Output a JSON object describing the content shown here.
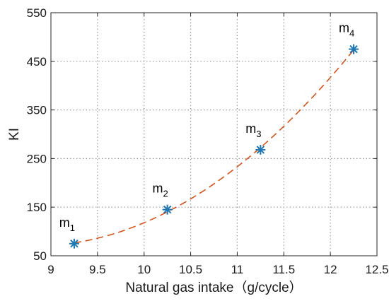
{
  "chart_data": {
    "type": "scatter",
    "xlabel": "Natural gas intake（g/cycle）",
    "ylabel": "KI",
    "xlim": [
      9,
      12.5
    ],
    "ylim": [
      50,
      550
    ],
    "xticks": [
      "9",
      "9.5",
      "10",
      "10.5",
      "11",
      "11.5",
      "12",
      "12.5"
    ],
    "yticks": [
      "50",
      "150",
      "250",
      "350",
      "450",
      "550"
    ],
    "grid": true,
    "points": [
      {
        "x": 9.25,
        "y": 75,
        "label_base": "m",
        "label_sub": "1"
      },
      {
        "x": 10.25,
        "y": 145,
        "label_base": "m",
        "label_sub": "2"
      },
      {
        "x": 11.25,
        "y": 268,
        "label_base": "m",
        "label_sub": "3"
      },
      {
        "x": 12.25,
        "y": 475,
        "label_base": "m",
        "label_sub": "4"
      }
    ],
    "marker_color": "#1f77b4",
    "fit_curve": {
      "style": "dashed",
      "color": "#d95319",
      "x_range": [
        9.25,
        12.25
      ]
    }
  }
}
